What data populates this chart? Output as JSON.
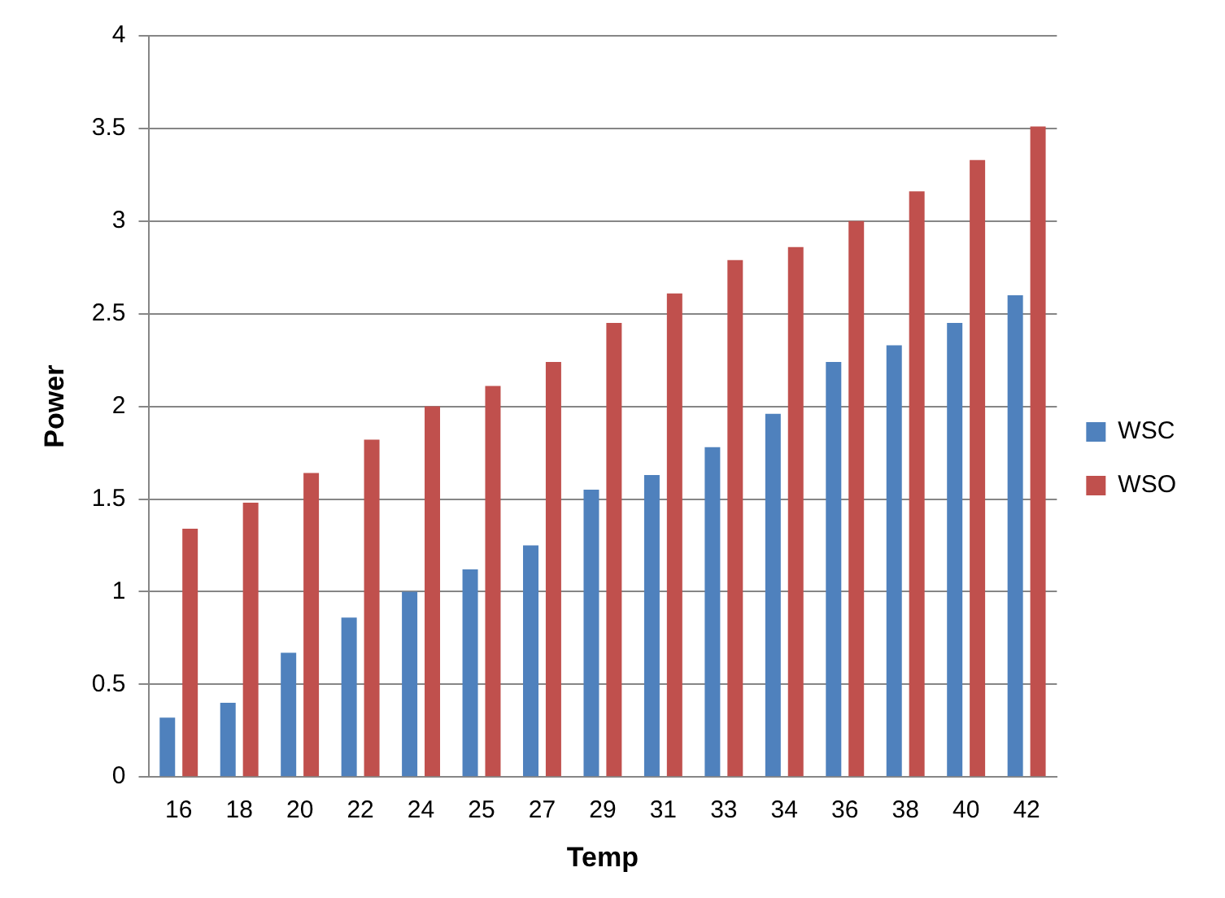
{
  "chart_data": {
    "type": "bar",
    "xlabel": "Temp",
    "ylabel": "Power",
    "categories": [
      "16",
      "18",
      "20",
      "22",
      "24",
      "25",
      "27",
      "29",
      "31",
      "33",
      "34",
      "36",
      "38",
      "40",
      "42"
    ],
    "series": [
      {
        "name": "WSC",
        "color": "#4f81bd",
        "values": [
          0.32,
          0.4,
          0.67,
          0.86,
          1.0,
          1.12,
          1.25,
          1.55,
          1.63,
          1.78,
          1.96,
          2.24,
          2.33,
          2.45,
          2.6
        ]
      },
      {
        "name": "WSO",
        "color": "#c0504d",
        "values": [
          1.34,
          1.48,
          1.64,
          1.82,
          2.0,
          2.11,
          2.24,
          2.45,
          2.61,
          2.79,
          2.86,
          3.0,
          3.16,
          3.33,
          3.51
        ]
      }
    ],
    "ylim": [
      0,
      4
    ],
    "yticks": [
      0,
      0.5,
      1,
      1.5,
      2,
      2.5,
      3,
      3.5,
      4
    ],
    "grid": "y",
    "legend": "right"
  }
}
